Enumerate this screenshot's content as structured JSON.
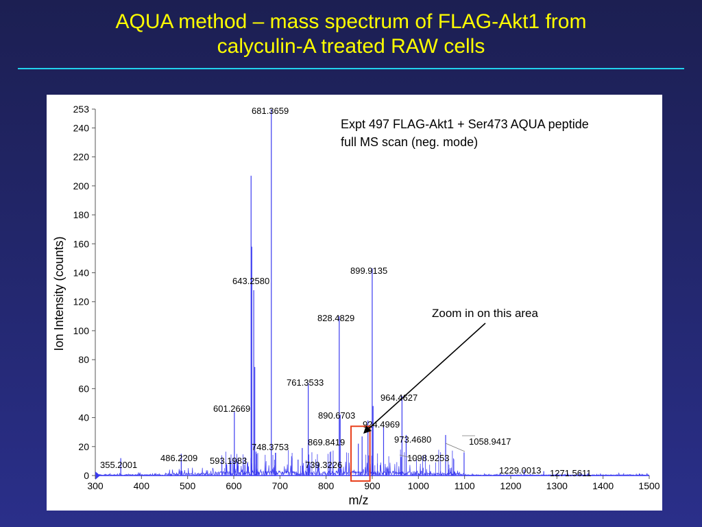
{
  "slide": {
    "title_line1": "AQUA method – mass spectrum of FLAG-Akt1 from",
    "title_line2": "calyculin-A treated RAW cells",
    "colors": {
      "background": "#22266a",
      "title": "#ffff00",
      "rule": "#22d3ee"
    }
  },
  "chart_data": {
    "type": "line",
    "title": "Expt 497 FLAG-Akt1 + Ser473 AQUA peptide",
    "subtitle": "full MS scan (neg. mode)",
    "xlabel": "m/z",
    "ylabel": "Ion Intensity (counts)",
    "xlim": [
      300,
      1500
    ],
    "ylim": [
      0,
      253
    ],
    "x_ticks": [
      300,
      400,
      500,
      600,
      700,
      800,
      900,
      1000,
      1100,
      1200,
      1300,
      1400,
      1500
    ],
    "y_ticks": [
      0,
      20,
      40,
      60,
      80,
      100,
      120,
      140,
      160,
      180,
      200,
      220,
      240,
      253
    ],
    "grid": false,
    "line_color": "#3a3af0",
    "peaks": [
      {
        "mz": 355.2001,
        "intensity": 12,
        "label": "355.2001"
      },
      {
        "mz": 486.2209,
        "intensity": 15,
        "label": "486.2209"
      },
      {
        "mz": 593.1983,
        "intensity": 10,
        "label": "593.1983"
      },
      {
        "mz": 601.2669,
        "intensity": 44,
        "label": "601.2669"
      },
      {
        "mz": 637.5,
        "intensity": 207,
        "label": ""
      },
      {
        "mz": 639.0,
        "intensity": 158,
        "label": ""
      },
      {
        "mz": 643.258,
        "intensity": 128,
        "label": "643.2580"
      },
      {
        "mz": 645.5,
        "intensity": 75,
        "label": ""
      },
      {
        "mz": 681.3659,
        "intensity": 253,
        "label": "681.3659"
      },
      {
        "mz": 748.3753,
        "intensity": 19,
        "label": "748.3753"
      },
      {
        "mz": 739.3226,
        "intensity": 11,
        "label": "739.3226"
      },
      {
        "mz": 761.3533,
        "intensity": 64,
        "label": "761.3533"
      },
      {
        "mz": 828.4829,
        "intensity": 110,
        "label": "828.4829"
      },
      {
        "mz": 830.5,
        "intensity": 42,
        "label": ""
      },
      {
        "mz": 869.8419,
        "intensity": 22,
        "label": "869.8419"
      },
      {
        "mz": 878.0,
        "intensity": 27,
        "label": ""
      },
      {
        "mz": 890.6703,
        "intensity": 38,
        "label": "890.6703"
      },
      {
        "mz": 899.9135,
        "intensity": 143,
        "label": "899.9135"
      },
      {
        "mz": 901.8,
        "intensity": 48,
        "label": ""
      },
      {
        "mz": 924.4969,
        "intensity": 34,
        "label": "924.4969"
      },
      {
        "mz": 964.4627,
        "intensity": 55,
        "label": "964.4627"
      },
      {
        "mz": 973.468,
        "intensity": 28,
        "label": "973.4680"
      },
      {
        "mz": 1058.9417,
        "intensity": 28,
        "label": "1058.9417"
      },
      {
        "mz": 1098.9253,
        "intensity": 16,
        "label": "1098.9253"
      },
      {
        "mz": 1229.0013,
        "intensity": 4,
        "label": "1229.0013"
      },
      {
        "mz": 1271.5611,
        "intensity": 3,
        "label": "1271.5611"
      }
    ],
    "annotation": {
      "text": "Zoom in on this area",
      "box_mz": [
        854,
        895
      ],
      "box_intensity": [
        0,
        34
      ],
      "box_color": "#e8401c"
    }
  }
}
